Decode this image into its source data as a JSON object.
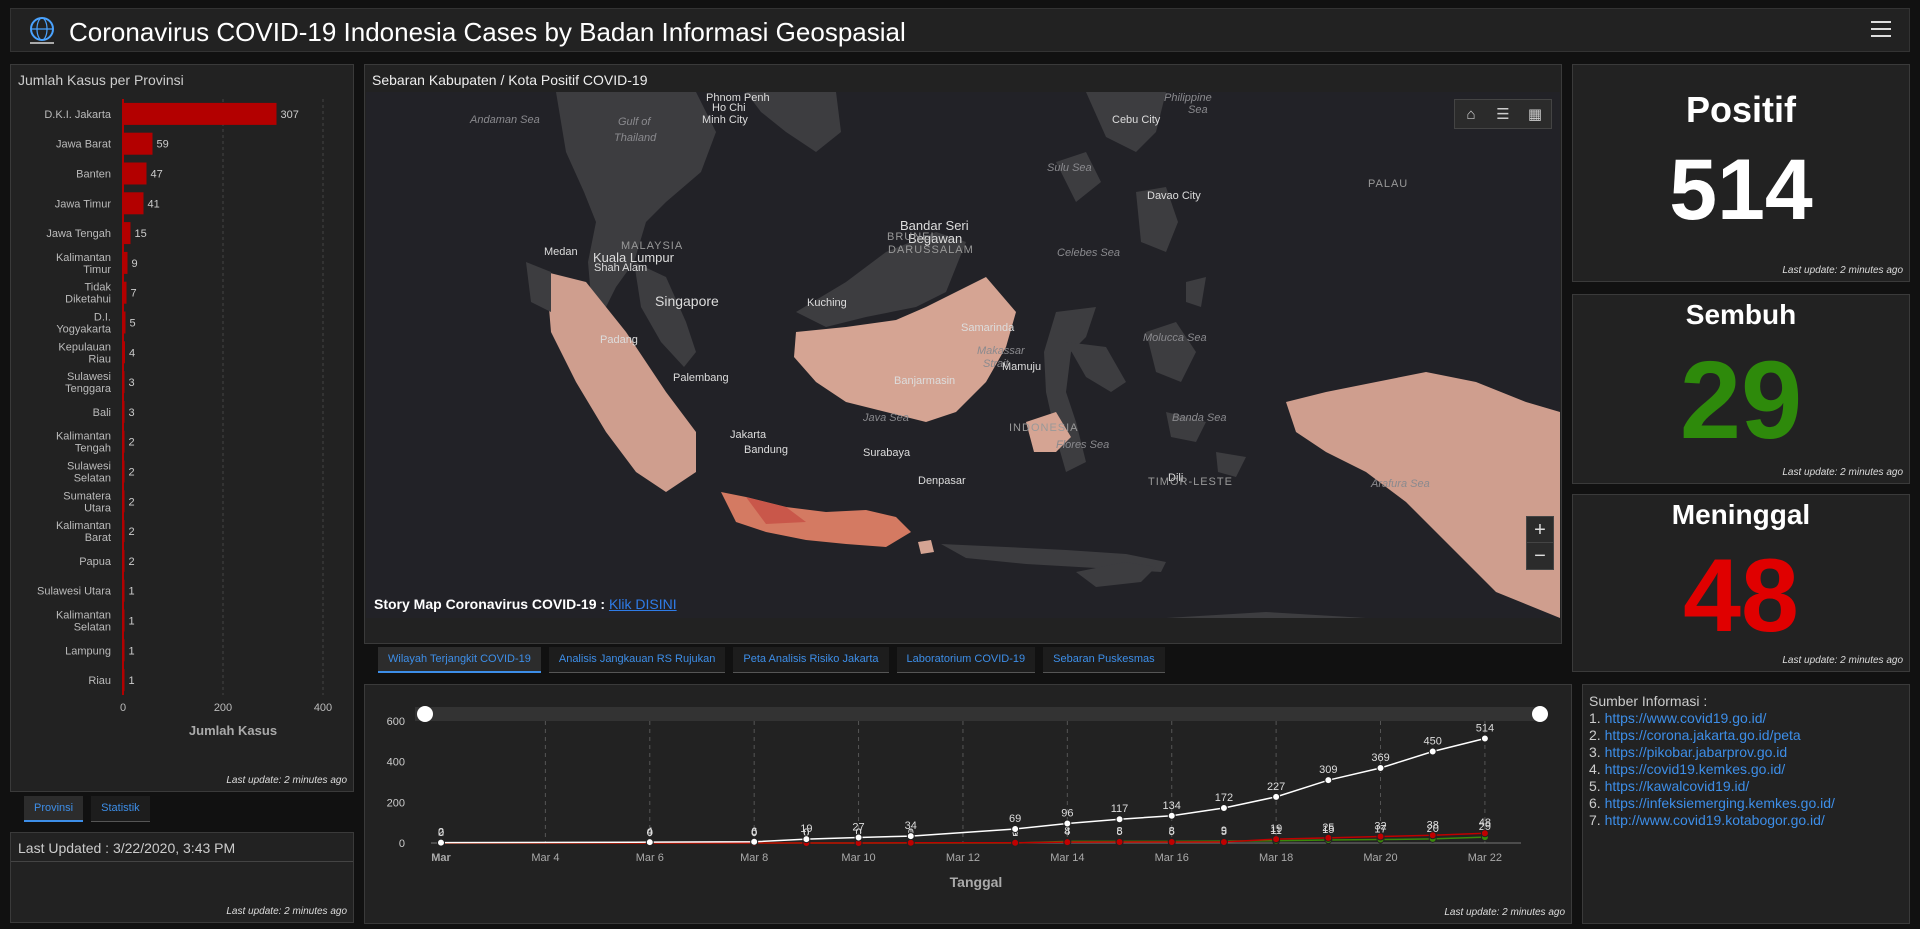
{
  "header": {
    "title": "Coronavirus COVID-19 Indonesia Cases by Badan Informasi Geospasial"
  },
  "province_panel": {
    "title": "Jumlah Kasus per Provinsi",
    "last_update": "Last update: 2 minutes ago",
    "tabs": [
      "Provinsi",
      "Statistik"
    ]
  },
  "province_chart": {
    "type": "bar",
    "xlabel": "Jumlah Kasus",
    "xlim": [
      0,
      400
    ],
    "xticks": [
      "0",
      "200",
      "400"
    ],
    "bar_color": "#b30000",
    "rows": [
      {
        "name": [
          "D.K.I. Jakarta"
        ],
        "value": 307
      },
      {
        "name": [
          "Jawa Barat"
        ],
        "value": 59
      },
      {
        "name": [
          "Banten"
        ],
        "value": 47
      },
      {
        "name": [
          "Jawa Timur"
        ],
        "value": 41
      },
      {
        "name": [
          "Jawa Tengah"
        ],
        "value": 15
      },
      {
        "name": [
          "Kalimantan",
          "Timur"
        ],
        "value": 9
      },
      {
        "name": [
          "Tidak",
          "Diketahui"
        ],
        "value": 7
      },
      {
        "name": [
          "D.I.",
          "Yogyakarta"
        ],
        "value": 5
      },
      {
        "name": [
          "Kepulauan",
          "Riau"
        ],
        "value": 4
      },
      {
        "name": [
          "Sulawesi",
          "Tenggara"
        ],
        "value": 3
      },
      {
        "name": [
          "Bali"
        ],
        "value": 3
      },
      {
        "name": [
          "Kalimantan",
          "Tengah"
        ],
        "value": 2
      },
      {
        "name": [
          "Sulawesi",
          "Selatan"
        ],
        "value": 2
      },
      {
        "name": [
          "Sumatera",
          "Utara"
        ],
        "value": 2
      },
      {
        "name": [
          "Kalimantan",
          "Barat"
        ],
        "value": 2
      },
      {
        "name": [
          "Papua"
        ],
        "value": 2
      },
      {
        "name": [
          "Sulawesi Utara"
        ],
        "value": 1
      },
      {
        "name": [
          "Kalimantan",
          "Selatan"
        ],
        "value": 1
      },
      {
        "name": [
          "Lampung"
        ],
        "value": 1
      },
      {
        "name": [
          "Riau"
        ],
        "value": 1
      }
    ]
  },
  "updated_panel": {
    "text": "Last Updated : 3/22/2020, 3:43 PM",
    "last_update": "Last update: 2 minutes ago"
  },
  "map_panel": {
    "title": "Sebaran Kabupaten / Kota Positif COVID-19",
    "story_label": "Story Map Coronavirus COVID-19 :",
    "story_link": "Klik DISINI",
    "tools": [
      "home-icon",
      "list-icon",
      "qrcode-icon"
    ],
    "zoom_in": "+",
    "zoom_out": "−",
    "labels": [
      {
        "t": "Phnom Penh",
        "k": "city"
      },
      {
        "t": "Ho Chi",
        "k": "city"
      },
      {
        "t": "Minh City",
        "k": "city"
      },
      {
        "t": "Andaman Sea",
        "k": "sea"
      },
      {
        "t": "Gulf of",
        "k": "sea"
      },
      {
        "t": "Thailand",
        "k": "sea"
      },
      {
        "t": "Philippine",
        "k": "sea"
      },
      {
        "t": "Sea",
        "k": "sea"
      },
      {
        "t": "Cebu City",
        "k": "city"
      },
      {
        "t": "Sulu Sea",
        "k": "sea"
      },
      {
        "t": "Davao City",
        "k": "city"
      },
      {
        "t": "PALAU",
        "k": "country"
      },
      {
        "t": "Bandar Seri",
        "k": "city"
      },
      {
        "t": "Begawan",
        "k": "city"
      },
      {
        "t": "BRUNEI",
        "k": "country"
      },
      {
        "t": "DARUSSALAM",
        "k": "country"
      },
      {
        "t": "MALAYSIA",
        "k": "country"
      },
      {
        "t": "Medan",
        "k": "city"
      },
      {
        "t": "Kuala Lumpur",
        "k": "city"
      },
      {
        "t": "Shah Alam",
        "k": "city"
      },
      {
        "t": "Singapore",
        "k": "city"
      },
      {
        "t": "Celebes Sea",
        "k": "sea"
      },
      {
        "t": "Kuching",
        "k": "city"
      },
      {
        "t": "Samarinda",
        "k": "city"
      },
      {
        "t": "Padang",
        "k": "city"
      },
      {
        "t": "Makassar",
        "k": "sea"
      },
      {
        "t": "Strait",
        "k": "sea"
      },
      {
        "t": "Molucca Sea",
        "k": "sea"
      },
      {
        "t": "Mamuju",
        "k": "city"
      },
      {
        "t": "Palembang",
        "k": "city"
      },
      {
        "t": "Banjarmasin",
        "k": "city"
      },
      {
        "t": "Java Sea",
        "k": "sea"
      },
      {
        "t": "INDONESIA",
        "k": "country"
      },
      {
        "t": "Banda Sea",
        "k": "sea"
      },
      {
        "t": "Jakarta",
        "k": "city"
      },
      {
        "t": "Bandung",
        "k": "city"
      },
      {
        "t": "Surabaya",
        "k": "city"
      },
      {
        "t": "Flores Sea",
        "k": "sea"
      },
      {
        "t": "Denpasar",
        "k": "city"
      },
      {
        "t": "Dili",
        "k": "city"
      },
      {
        "t": "TIMOR-LESTE",
        "k": "country"
      },
      {
        "t": "Arafura Sea",
        "k": "sea"
      }
    ]
  },
  "map_tabs": [
    "Wilayah Terjangkit COVID-19",
    "Analisis Jangkauan RS Rujukan",
    "Peta Analisis Risiko Jakarta",
    "Laboratorium COVID-19",
    "Sebaran Puskesmas"
  ],
  "stats": [
    {
      "label": "Positif",
      "value": "514",
      "color": "#ffffff",
      "last_update": "Last update: 2 minutes ago"
    },
    {
      "label": "Sembuh",
      "value": "29",
      "color": "#2e8a0b",
      "last_update": "Last update: 2 minutes ago"
    },
    {
      "label": "Meninggal",
      "value": "48",
      "color": "#e00000",
      "last_update": "Last update: 2 minutes ago"
    }
  ],
  "timeline_chart": {
    "type": "line",
    "xlabel": "Tanggal",
    "ylim": [
      0,
      600
    ],
    "yticks": [
      "0",
      "200",
      "400",
      "600"
    ],
    "xticks": [
      {
        "d": 0,
        "t": "Mar"
      },
      {
        "d": 2,
        "t": "Mar 4"
      },
      {
        "d": 4,
        "t": "Mar 6"
      },
      {
        "d": 6,
        "t": "Mar 8"
      },
      {
        "d": 8,
        "t": "Mar 10"
      },
      {
        "d": 10,
        "t": "Mar 12"
      },
      {
        "d": 12,
        "t": "Mar 14"
      },
      {
        "d": 14,
        "t": "Mar 16"
      },
      {
        "d": 16,
        "t": "Mar 18"
      },
      {
        "d": 18,
        "t": "Mar 20"
      },
      {
        "d": 20,
        "t": "Mar 22"
      }
    ],
    "series": [
      {
        "color": "#ffffff",
        "points": [
          [
            0,
            2
          ],
          [
            4,
            4
          ],
          [
            6,
            6
          ],
          [
            7,
            19
          ],
          [
            8,
            27
          ],
          [
            9,
            34
          ],
          [
            11,
            69
          ],
          [
            12,
            96
          ],
          [
            13,
            117
          ],
          [
            14,
            134
          ],
          [
            15,
            172
          ],
          [
            16,
            227
          ],
          [
            17,
            309
          ],
          [
            18,
            369
          ],
          [
            19,
            450
          ],
          [
            20,
            514
          ]
        ]
      },
      {
        "color": "#c00000",
        "points": [
          [
            0,
            0
          ],
          [
            4,
            0
          ],
          [
            6,
            0
          ],
          [
            7,
            0
          ],
          [
            8,
            0
          ],
          [
            9,
            1
          ],
          [
            11,
            1
          ],
          [
            12,
            4
          ],
          [
            13,
            5
          ],
          [
            14,
            5
          ],
          [
            15,
            5
          ],
          [
            16,
            19
          ],
          [
            17,
            25
          ],
          [
            18,
            32
          ],
          [
            19,
            38
          ],
          [
            20,
            48
          ]
        ]
      },
      {
        "color": "#3a8a0a",
        "points": [
          [
            0,
            0
          ],
          [
            4,
            0
          ],
          [
            6,
            0
          ],
          [
            7,
            0
          ],
          [
            8,
            0
          ],
          [
            9,
            0
          ],
          [
            11,
            0
          ],
          [
            12,
            8
          ],
          [
            13,
            8
          ],
          [
            14,
            8
          ],
          [
            15,
            9
          ],
          [
            16,
            11
          ],
          [
            17,
            15
          ],
          [
            18,
            17
          ],
          [
            19,
            20
          ],
          [
            20,
            29
          ]
        ]
      }
    ],
    "last_update": "Last update: 2 minutes ago"
  },
  "sources_panel": {
    "title": "Sumber Informasi :",
    "links": [
      {
        "n": "1.",
        "url": "https://www.covid19.go.id/"
      },
      {
        "n": "2.",
        "url": "https://corona.jakarta.go.id/peta"
      },
      {
        "n": "3.",
        "url": "https://pikobar.jabarprov.go.id"
      },
      {
        "n": "4.",
        "url": "https://covid19.kemkes.go.id/"
      },
      {
        "n": "5.",
        "url": "https://kawalcovid19.id/"
      },
      {
        "n": "6.",
        "url": "https://infeksiemerging.kemkes.go.id/"
      },
      {
        "n": "7.",
        "url": "http://www.covid19.kotabogor.go.id/"
      }
    ]
  }
}
